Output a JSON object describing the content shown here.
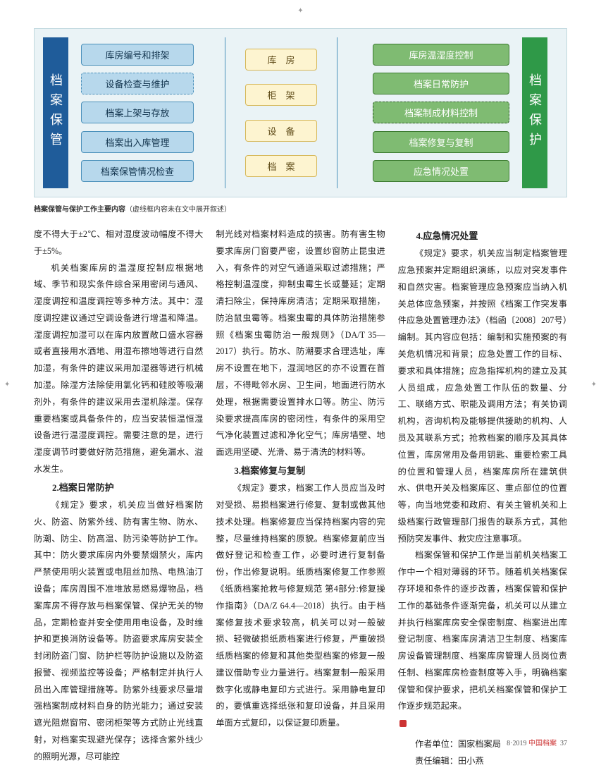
{
  "diagram": {
    "side_left": "档案保管",
    "side_right": "档案保护",
    "left_nodes": [
      {
        "label": "库房编号和排架",
        "dashed": false
      },
      {
        "label": "设备检查与维护",
        "dashed": true
      },
      {
        "label": "档案上架与存放",
        "dashed": false
      },
      {
        "label": "档案出入库管理",
        "dashed": false
      },
      {
        "label": "档案保管情况检查",
        "dashed": false
      }
    ],
    "mid_nodes": [
      "库　房",
      "柜　架",
      "设　备",
      "档　案"
    ],
    "right_nodes": [
      {
        "label": "库房温湿度控制",
        "dashed": false
      },
      {
        "label": "档案日常防护",
        "dashed": false
      },
      {
        "label": "档案制成材料控制",
        "dashed": true
      },
      {
        "label": "档案修复与复制",
        "dashed": false
      },
      {
        "label": "应急情况处置",
        "dashed": false
      }
    ]
  },
  "caption_bold": "档案保管与保护工作主要内容",
  "caption_rest": "（虚线框内容未在文中展开叙述）",
  "col1": {
    "p1": "度不得大于±2℃、相对湿度波动幅度不得大于±5%。",
    "p2": "机关档案库房的温湿度控制应根据地域、季节和现实条件综合采用密闭与通风、湿度调控和温度调控等多种方法。其中：湿度调控建议通过空调设备进行增温和降温。湿度调控加湿可以在库内放置敞口盛水容器或者直接用水洒地、用湿布擦地等进行自然加湿，有条件的建议采用加湿器等进行机械加湿。除湿方法除使用氯化钙和硅胶等吸潮剂外，有条件的建议采用去湿机除湿。保存重要档案或具备条件的，应当安装恒温恒湿设备进行温湿度调控。需要注意的是，进行湿度调节时要做好防范措施，避免漏水、溢水发生。",
    "h1": "2.档案日常防护",
    "p3": "《规定》要求，机关应当做好档案防火、防盗、防紫外线、防有害生物、防水、防潮、防尘、防高温、防污染等防护工作。其中：防火要求库房内外要禁烟禁火，库内严禁使用明火装置或电阻丝加热、电热油汀设备；库房周围不准堆放易燃易爆物品，档案库房不得存放与档案保管、保护无关的物品，定期检查并安全使用用电设备，及时维护和更换消防设备等。防盗要求库房安装全封闭防盗门窗、防护栏等防护设施以及防盗报警、视频监控等设备；严格制定并执行人员出入库管理措施等。防紫外线要求尽量增强档案制成材料自身的防光能力；通过安装遮光阻燃窗帘、密闭柜架等方式防止光线直射，对档案实现避光保存；选择含紫外线少的照明光源，尽可能控"
  },
  "col2": {
    "p1": "制光线对档案材料造成的损害。防有害生物要求库房门窗要严密，设置纱窗防止昆虫进入，有条件的对空气通道采取过滤措施；严格控制温湿度，抑制虫霉生长或蔓延；定期清扫除尘，保持库房清洁；定期采取措施，防治鼠虫霉等。档案虫霉的具体防治措施参照《档案虫霉防治一般规则》（DA/T 35—2017）执行。防水、防潮要求合理选址，库房不设置在地下，湿润地区的亦不设置在首层，不得毗邻水房、卫生间，地面进行防水处理，根据需要设置排水口等。防尘、防污染要求提高库房的密闭性，有条件的采用空气净化装置过滤和净化空气；库房墙壁、地面选用坚硬、光滑、易于清洗的材料等。",
    "h1": "3.档案修复与复制",
    "p2": "《规定》要求，档案工作人员应当及时对受损、易损档案进行修复、复制或做其他技术处理。档案修复应当保持档案内容的完整，尽量维持档案的原貌。档案修复前应当做好登记和检查工作，必要时进行复制备份，作出修复说明。纸质档案修复工作参照《纸质档案抢救与修复规范 第4部分:修复操作指南》（DA/Z 64.4—2018）执行。由于档案修复技术要求较高，机关可以对一般破损、轻微破损纸质档案进行修复，严重破损纸质档案的修复和其他类型档案的修复一般建议借助专业力量进行。档案复制一般采用数字化或静电复印方式进行。采用静电复印的，要慎重选择纸张和复印设备，并且采用单面方式复印，以保证复印质量。"
  },
  "col3": {
    "h1": "4.应急情况处置",
    "p1": "《规定》要求，机关应当制定档案管理应急预案并定期组织演练，以应对突发事件和自然灾害。档案管理应急预案应当纳入机关总体应急预案，并按照《档案工作突发事件应急处置管理办法》（档函〔2008〕207号）编制。其内容应包括：编制和实施预案的有关危机情况和背景；应急处置工作的目标、要求和具体措施；应急指挥机构的建立及其人员组成，应急处置工作队伍的数量、分工、联络方式、职能及调用方法；有关协调机构，咨询机构及能够提供援助的机构、人员及其联系方式；抢救档案的顺序及其具体位置，库房常用及备用钥匙、重要检索工具的位置和管理人员，档案库房所在建筑供水、供电开关及档案库区、重点部位的位置等，向当地党委和政府、有关主管机关和上级档案行政管理部门报告的联系方式，其他预防突发事件、救灾应注意事项。",
    "p2": "档案保管和保护工作是当前机关档案工作中一个相对薄弱的环节。随着机关档案保存环境和条件的逐步改善，档案保管和保护工作的基础条件逐渐完备，机关可以从建立并执行档案库房安全保密制度、档案进出库登记制度、档案库房清洁卫生制度、档案库房设备管理制度、档案库房管理人员岗位责任制、档案库房检查制度等入手，明确档案保管和保护要求，把机关档案保管和保护工作逐步规范起来。",
    "author": "作者单位：国家档案局",
    "editor": "责任编辑：田小燕"
  },
  "footer": {
    "issue": "8·2019",
    "mag": "中国档案",
    "page": "37"
  }
}
